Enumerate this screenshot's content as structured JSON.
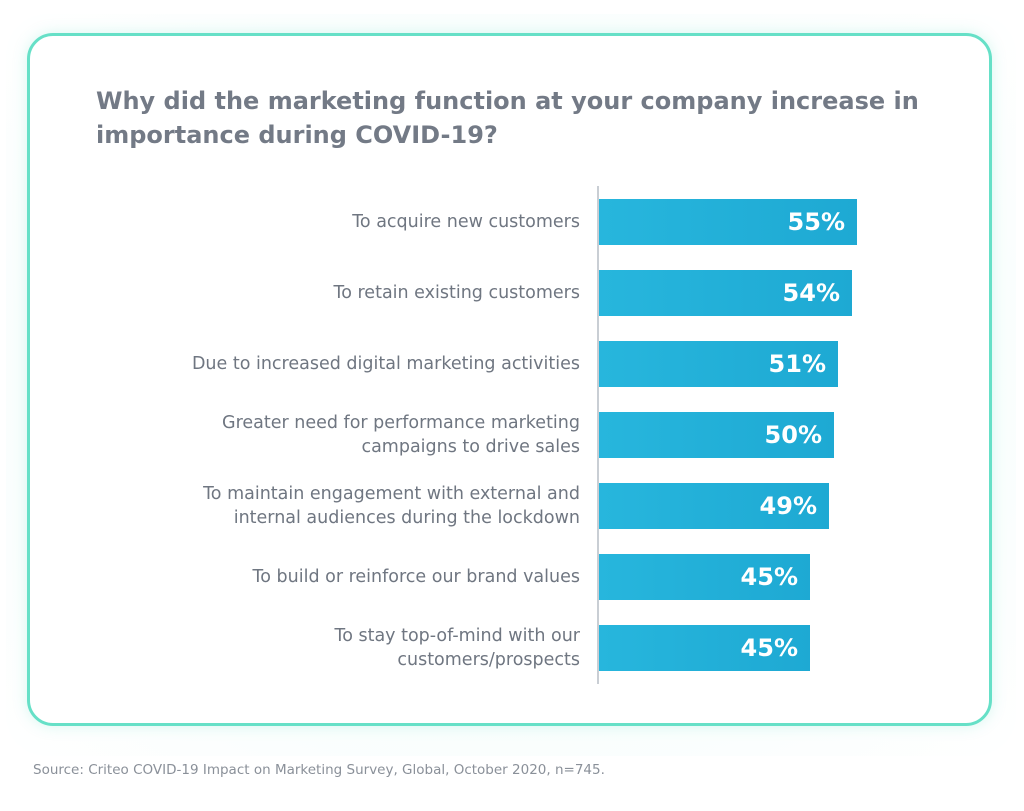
{
  "colors": {
    "card_border": "#66e0c7",
    "bar": "#1ea9d3",
    "title_text": "#737a86",
    "label_text": "#6f7681",
    "value_text": "#ffffff"
  },
  "chart_data": {
    "type": "bar",
    "orientation": "horizontal",
    "title": "Why did the marketing function at your company increase in importance during COVID-19?",
    "categories": [
      [
        "To acquire new customers"
      ],
      [
        "To retain existing customers"
      ],
      [
        "Due to increased digital marketing activities"
      ],
      [
        "Greater need for performance marketing",
        "campaigns to drive sales"
      ],
      [
        "To maintain engagement with external and",
        "internal audiences during the lockdown"
      ],
      [
        "To build or reinforce our brand values"
      ],
      [
        "To stay top-of-mind with our",
        "customers/prospects"
      ]
    ],
    "values": [
      55,
      54,
      51,
      50,
      49,
      45,
      45
    ],
    "value_labels": [
      "55%",
      "54%",
      "51%",
      "50%",
      "49%",
      "45%",
      "45%"
    ],
    "unit": "%",
    "grid": false,
    "legend": "none"
  },
  "source": "Source: Criteo COVID-19 Impact on Marketing Survey, Global, October 2020, n=745."
}
